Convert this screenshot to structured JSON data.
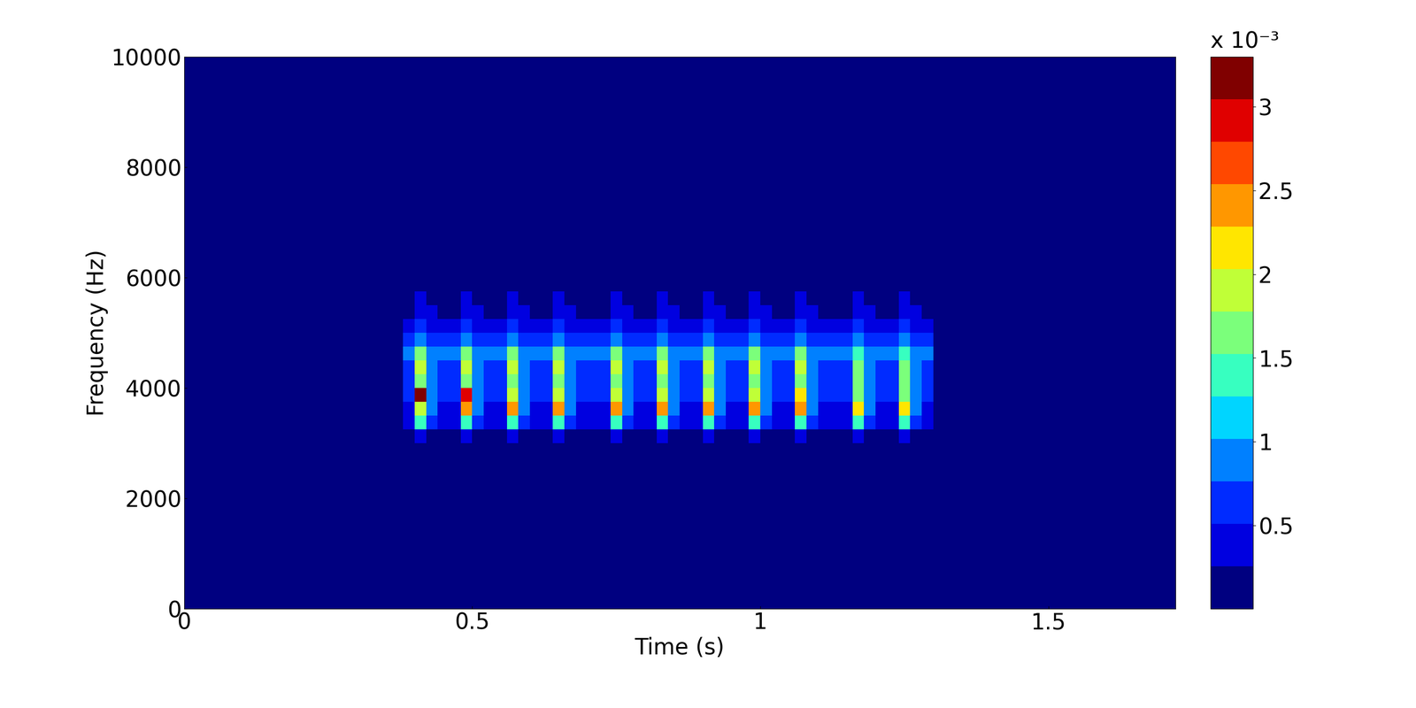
{
  "chart_data": {
    "type": "heatmap",
    "x_label": "Time (s)",
    "y_label": "Frequency (Hz)",
    "xlim": [
      0,
      1.72
    ],
    "ylim": [
      0,
      10000
    ],
    "xticks": [
      0,
      0.5,
      1,
      1.5
    ],
    "yticks": [
      0,
      2000,
      4000,
      6000,
      8000,
      10000
    ],
    "x_edges": [
      0,
      0.38,
      0.4,
      0.42,
      0.44,
      0.46,
      0.48,
      0.5,
      0.52,
      0.54,
      0.56,
      0.58,
      0.6,
      0.62,
      0.64,
      0.66,
      0.68,
      0.7,
      0.72,
      0.74,
      0.76,
      0.78,
      0.8,
      0.82,
      0.84,
      0.86,
      0.88,
      0.9,
      0.92,
      0.94,
      0.96,
      0.98,
      1.0,
      1.02,
      1.04,
      1.06,
      1.08,
      1.1,
      1.12,
      1.14,
      1.16,
      1.18,
      1.2,
      1.22,
      1.24,
      1.26,
      1.28,
      1.3,
      1.72
    ],
    "y_edges": [
      0,
      3000,
      3250,
      3500,
      3750,
      4000,
      4250,
      4500,
      4750,
      5000,
      5250,
      5500,
      5750,
      6000,
      6250,
      10000
    ],
    "cells": [
      [
        0,
        0,
        0,
        0,
        0,
        0,
        0,
        0,
        0,
        0,
        0,
        0,
        0,
        0,
        0,
        0,
        0,
        0,
        0,
        0,
        0,
        0,
        0,
        0,
        0,
        0,
        0,
        0,
        0,
        0,
        0,
        0,
        0,
        0,
        0,
        0,
        0,
        0,
        0,
        0,
        0,
        0,
        0,
        0,
        0,
        0,
        0,
        0
      ],
      [
        0,
        0.1,
        0.4,
        0.2,
        0.1,
        0.1,
        0.4,
        0.2,
        0.1,
        0.1,
        0.4,
        0.2,
        0.1,
        0.1,
        0.4,
        0.2,
        0.1,
        0.1,
        0.1,
        0.4,
        0.2,
        0.1,
        0.1,
        0.4,
        0.2,
        0.1,
        0.1,
        0.4,
        0.2,
        0.1,
        0.1,
        0.4,
        0.2,
        0.1,
        0.1,
        0.4,
        0.2,
        0.1,
        0.1,
        0.1,
        0.4,
        0.2,
        0.1,
        0.1,
        0.4,
        0.2,
        0.1,
        0
      ],
      [
        0,
        0.3,
        1.4,
        0.6,
        0.3,
        0.3,
        1.4,
        0.6,
        0.3,
        0.3,
        1.4,
        0.6,
        0.3,
        0.3,
        1.4,
        0.6,
        0.3,
        0.3,
        0.3,
        1.4,
        0.6,
        0.3,
        0.3,
        1.4,
        0.6,
        0.3,
        0.3,
        1.4,
        0.6,
        0.3,
        0.3,
        1.4,
        0.6,
        0.3,
        0.3,
        1.4,
        0.6,
        0.3,
        0.3,
        0.3,
        1.4,
        0.6,
        0.3,
        0.3,
        1.4,
        0.6,
        0.3,
        0
      ],
      [
        0,
        0.5,
        2.0,
        1.0,
        0.5,
        0.5,
        2.4,
        1.0,
        0.5,
        0.5,
        2.4,
        1.0,
        0.5,
        0.5,
        2.4,
        1.0,
        0.5,
        0.5,
        0.5,
        2.4,
        1.0,
        0.5,
        0.5,
        2.4,
        1.0,
        0.5,
        0.5,
        2.4,
        1.0,
        0.5,
        0.5,
        2.4,
        1.0,
        0.5,
        0.5,
        2.4,
        1.0,
        0.5,
        0.5,
        0.5,
        2.2,
        1.0,
        0.5,
        0.5,
        2.2,
        1.0,
        0.5,
        0
      ],
      [
        0,
        0.6,
        3.2,
        0.9,
        0.6,
        0.6,
        2.9,
        0.9,
        0.6,
        0.6,
        2.0,
        0.9,
        0.6,
        0.6,
        2.0,
        0.9,
        0.6,
        0.6,
        0.6,
        2.0,
        0.9,
        0.6,
        0.6,
        2.0,
        0.9,
        0.6,
        0.6,
        2.0,
        0.9,
        0.6,
        0.6,
        2.0,
        0.9,
        0.6,
        0.6,
        2.2,
        0.9,
        0.6,
        0.6,
        0.6,
        1.6,
        0.9,
        0.6,
        0.6,
        1.6,
        0.9,
        0.6,
        0
      ],
      [
        0,
        0.6,
        1.6,
        0.8,
        0.6,
        0.6,
        1.6,
        0.8,
        0.6,
        0.6,
        1.6,
        0.8,
        0.6,
        0.6,
        1.6,
        0.8,
        0.6,
        0.6,
        0.6,
        1.6,
        0.8,
        0.6,
        0.6,
        1.6,
        0.8,
        0.6,
        0.6,
        1.6,
        0.8,
        0.6,
        0.6,
        1.6,
        0.8,
        0.6,
        0.6,
        1.6,
        0.8,
        0.6,
        0.6,
        0.6,
        1.6,
        0.8,
        0.6,
        0.6,
        1.6,
        0.8,
        0.6,
        0
      ],
      [
        0,
        0.7,
        1.9,
        0.9,
        0.7,
        0.7,
        1.9,
        0.9,
        0.7,
        0.7,
        1.9,
        0.9,
        0.7,
        0.7,
        1.9,
        0.9,
        0.7,
        0.7,
        0.7,
        1.9,
        0.9,
        0.7,
        0.7,
        1.9,
        0.9,
        0.7,
        0.7,
        1.9,
        0.9,
        0.7,
        0.7,
        1.9,
        0.9,
        0.7,
        0.7,
        1.9,
        0.9,
        0.7,
        0.7,
        0.7,
        1.6,
        0.9,
        0.7,
        0.7,
        1.6,
        0.9,
        0.7,
        0
      ],
      [
        0,
        0.8,
        1.7,
        0.9,
        0.8,
        0.8,
        1.7,
        0.9,
        0.8,
        0.8,
        1.7,
        0.9,
        0.8,
        0.8,
        1.7,
        0.9,
        0.8,
        0.8,
        0.8,
        1.7,
        0.9,
        0.8,
        0.8,
        1.7,
        0.9,
        0.8,
        0.8,
        1.7,
        0.9,
        0.8,
        0.8,
        1.7,
        0.9,
        0.8,
        0.8,
        1.7,
        0.9,
        0.8,
        0.8,
        0.8,
        1.4,
        0.9,
        0.8,
        0.8,
        1.4,
        0.9,
        0.8,
        0
      ],
      [
        0,
        0.6,
        1.0,
        0.7,
        0.6,
        0.6,
        1.0,
        0.7,
        0.6,
        0.6,
        1.0,
        0.7,
        0.6,
        0.6,
        1.0,
        0.7,
        0.6,
        0.6,
        0.6,
        1.0,
        0.7,
        0.6,
        0.6,
        1.0,
        0.7,
        0.6,
        0.6,
        1.0,
        0.7,
        0.6,
        0.6,
        1.0,
        0.7,
        0.6,
        0.6,
        1.0,
        0.7,
        0.6,
        0.6,
        0.6,
        1.0,
        0.7,
        0.6,
        0.6,
        1.0,
        0.7,
        0.6,
        0
      ],
      [
        0,
        0.3,
        0.6,
        0.4,
        0.3,
        0.3,
        0.6,
        0.4,
        0.3,
        0.3,
        0.6,
        0.4,
        0.3,
        0.3,
        0.6,
        0.4,
        0.3,
        0.3,
        0.3,
        0.6,
        0.4,
        0.3,
        0.3,
        0.6,
        0.4,
        0.3,
        0.3,
        0.6,
        0.4,
        0.3,
        0.3,
        0.6,
        0.4,
        0.3,
        0.3,
        0.6,
        0.4,
        0.3,
        0.3,
        0.3,
        0.6,
        0.4,
        0.3,
        0.3,
        0.6,
        0.4,
        0.3,
        0
      ],
      [
        0,
        0.2,
        0.4,
        0.3,
        0.2,
        0.2,
        0.4,
        0.3,
        0.2,
        0.2,
        0.4,
        0.3,
        0.2,
        0.2,
        0.4,
        0.3,
        0.2,
        0.2,
        0.2,
        0.4,
        0.3,
        0.2,
        0.2,
        0.4,
        0.3,
        0.2,
        0.2,
        0.4,
        0.3,
        0.2,
        0.2,
        0.4,
        0.3,
        0.2,
        0.2,
        0.4,
        0.3,
        0.2,
        0.2,
        0.2,
        0.4,
        0.3,
        0.2,
        0.2,
        0.4,
        0.3,
        0.2,
        0
      ],
      [
        0,
        0.1,
        0.3,
        0.2,
        0.1,
        0.1,
        0.3,
        0.2,
        0.1,
        0.1,
        0.3,
        0.2,
        0.1,
        0.1,
        0.3,
        0.2,
        0.1,
        0.1,
        0.1,
        0.3,
        0.2,
        0.1,
        0.1,
        0.3,
        0.2,
        0.1,
        0.1,
        0.3,
        0.2,
        0.1,
        0.1,
        0.3,
        0.2,
        0.1,
        0.1,
        0.3,
        0.2,
        0.1,
        0.1,
        0.1,
        0.3,
        0.2,
        0.1,
        0.1,
        0.3,
        0.2,
        0.1,
        0
      ],
      [
        0,
        0.05,
        0.2,
        0.1,
        0.05,
        0.05,
        0.2,
        0.1,
        0.05,
        0.05,
        0.2,
        0.1,
        0.05,
        0.05,
        0.2,
        0.1,
        0.05,
        0.05,
        0.05,
        0.2,
        0.1,
        0.05,
        0.05,
        0.2,
        0.1,
        0.05,
        0.05,
        0.2,
        0.1,
        0.05,
        0.05,
        0.2,
        0.1,
        0.05,
        0.05,
        0.2,
        0.1,
        0.05,
        0.05,
        0.05,
        0.2,
        0.1,
        0.05,
        0.05,
        0.2,
        0.1,
        0.05,
        0
      ],
      [
        0,
        0,
        0.1,
        0.05,
        0,
        0,
        0.1,
        0.05,
        0,
        0,
        0.1,
        0.05,
        0,
        0,
        0.1,
        0.05,
        0,
        0,
        0,
        0.1,
        0.05,
        0,
        0,
        0.1,
        0.05,
        0,
        0,
        0.1,
        0.05,
        0,
        0,
        0.1,
        0.05,
        0,
        0,
        0.1,
        0.05,
        0,
        0,
        0,
        0.1,
        0.05,
        0,
        0,
        0.1,
        0.05,
        0,
        0
      ],
      [
        0,
        0,
        0,
        0,
        0,
        0,
        0,
        0,
        0,
        0,
        0,
        0,
        0,
        0,
        0,
        0,
        0,
        0,
        0,
        0,
        0,
        0,
        0,
        0,
        0,
        0,
        0,
        0,
        0,
        0,
        0,
        0,
        0,
        0,
        0,
        0,
        0,
        0,
        0,
        0,
        0,
        0,
        0,
        0,
        0,
        0,
        0,
        0
      ]
    ],
    "colorbar": {
      "range": [
        0,
        3.3
      ],
      "ticks": [
        0.5,
        1,
        1.5,
        2,
        2.5,
        3
      ],
      "label": "x 10⁻³"
    }
  }
}
